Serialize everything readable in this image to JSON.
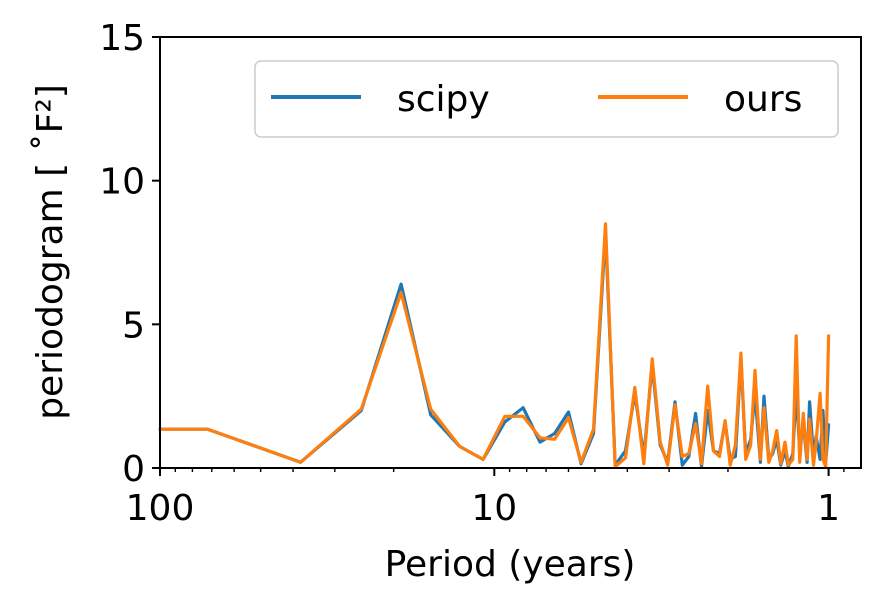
{
  "chart_data": {
    "type": "line",
    "xlabel": "Period (years)",
    "ylabel": "periodogram [ ˚F²]",
    "x_scale": "log",
    "x_inverted": true,
    "xlim": [
      100,
      0.8
    ],
    "ylim": [
      0,
      15
    ],
    "xticks": [
      {
        "value": 100,
        "label": "100"
      },
      {
        "value": 10,
        "label": "10"
      },
      {
        "value": 1,
        "label": "1"
      }
    ],
    "yticks": [
      {
        "value": 0,
        "label": "0"
      },
      {
        "value": 5,
        "label": "5"
      },
      {
        "value": 10,
        "label": "10"
      },
      {
        "value": 15,
        "label": "15"
      }
    ],
    "grid": false,
    "legend": {
      "placement": "upper-right",
      "columns": 2
    },
    "series": [
      {
        "name": "scipy",
        "color": "#1f77b4",
        "x": [
          100,
          72,
          38,
          25,
          19,
          15.5,
          12.7,
          10.8,
          9.3,
          8.2,
          7.3,
          6.6,
          6.0,
          5.5,
          5.05,
          4.65,
          4.35,
          4.05,
          3.8,
          3.57,
          3.37,
          3.19,
          3.03,
          2.88,
          2.74,
          2.62,
          2.5,
          2.4,
          2.3,
          2.21,
          2.12,
          2.04,
          1.97,
          1.9,
          1.83,
          1.77,
          1.71,
          1.66,
          1.6,
          1.56,
          1.51,
          1.47,
          1.43,
          1.39,
          1.35,
          1.32,
          1.28,
          1.25,
          1.22,
          1.19,
          1.16,
          1.14,
          1.11,
          1.09,
          1.06,
          1.04,
          1.02,
          1.0
        ],
        "y": [
          1.35,
          1.35,
          0.2,
          2.0,
          6.4,
          1.85,
          0.75,
          0.3,
          1.6,
          2.1,
          0.9,
          1.2,
          1.95,
          0.15,
          1.2,
          8.2,
          0.1,
          0.6,
          2.6,
          0.4,
          3.6,
          0.8,
          0.2,
          2.3,
          0.1,
          0.4,
          1.9,
          0.05,
          2.0,
          0.6,
          0.5,
          1.6,
          0.3,
          0.4,
          3.8,
          0.5,
          1.0,
          2.6,
          0.2,
          2.5,
          0.3,
          0.5,
          1.0,
          0.1,
          0.6,
          0.05,
          0.5,
          2.7,
          0.6,
          1.6,
          0.2,
          2.3,
          0.4,
          1.1,
          0.3,
          2.0,
          0.2,
          1.5
        ]
      },
      {
        "name": "ours",
        "color": "#ff7f0e",
        "x": [
          100,
          72,
          38,
          25,
          19,
          15.5,
          12.7,
          10.8,
          9.3,
          8.2,
          7.3,
          6.6,
          6.0,
          5.5,
          5.05,
          4.65,
          4.35,
          4.05,
          3.8,
          3.57,
          3.37,
          3.19,
          3.03,
          2.88,
          2.74,
          2.62,
          2.5,
          2.4,
          2.3,
          2.21,
          2.12,
          2.04,
          1.97,
          1.9,
          1.83,
          1.77,
          1.71,
          1.66,
          1.6,
          1.56,
          1.51,
          1.47,
          1.43,
          1.39,
          1.35,
          1.32,
          1.28,
          1.25,
          1.22,
          1.19,
          1.16,
          1.14,
          1.11,
          1.09,
          1.06,
          1.04,
          1.02,
          1.0
        ],
        "y": [
          1.35,
          1.35,
          0.2,
          2.05,
          6.1,
          2.05,
          0.75,
          0.3,
          1.8,
          1.8,
          1.05,
          1.0,
          1.75,
          0.2,
          1.35,
          8.5,
          0.05,
          0.35,
          2.8,
          0.15,
          3.8,
          0.9,
          0.1,
          2.2,
          0.4,
          0.5,
          1.55,
          0.15,
          2.85,
          0.6,
          0.4,
          1.65,
          0.1,
          0.8,
          4.0,
          0.3,
          0.8,
          3.4,
          0.3,
          2.1,
          0.2,
          0.6,
          1.3,
          0.15,
          0.9,
          0.1,
          0.3,
          4.6,
          0.2,
          1.9,
          0.3,
          1.7,
          0.1,
          0.9,
          2.6,
          0.3,
          0.05,
          4.6
        ]
      }
    ]
  }
}
